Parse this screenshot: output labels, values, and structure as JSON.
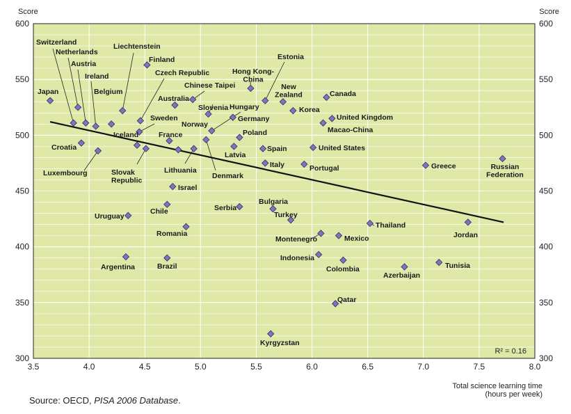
{
  "source": {
    "prefix": "Source: OECD, ",
    "italic": "PISA 2006 Database",
    "suffix": "."
  },
  "chart_data": {
    "type": "scatter",
    "ylabel_left": "Score",
    "ylabel_right": "Score",
    "xlabel_line1": "Total science learning time",
    "xlabel_line2": "(hours per week)",
    "xlim": [
      3.5,
      8.0
    ],
    "ylim": [
      300,
      600
    ],
    "xticks": [
      "3.5",
      "4.0",
      "4.5",
      "5.0",
      "5.5",
      "6.0",
      "6.5",
      "7.0",
      "7.5",
      "8.0"
    ],
    "yticks": [
      "300",
      "350",
      "400",
      "450",
      "500",
      "550",
      "600"
    ],
    "grid": true,
    "r2_label": "R² = 0.16",
    "trendline": {
      "x": [
        3.65,
        7.72
      ],
      "y": [
        512,
        422
      ]
    },
    "points": [
      {
        "name": "Japan",
        "x": 3.65,
        "y": 531
      },
      {
        "name": "Switzerland",
        "x": 3.86,
        "y": 511
      },
      {
        "name": "Netherlands",
        "x": 3.9,
        "y": 525
      },
      {
        "name": "Austria",
        "x": 3.97,
        "y": 511
      },
      {
        "name": "Ireland",
        "x": 4.06,
        "y": 508
      },
      {
        "name": "Croatia",
        "x": 3.93,
        "y": 493
      },
      {
        "name": "Luxembourg",
        "x": 4.08,
        "y": 486
      },
      {
        "name": "Belgium",
        "x": 4.2,
        "y": 510
      },
      {
        "name": "Liechtenstein",
        "x": 4.3,
        "y": 522
      },
      {
        "name": "Finland",
        "x": 4.52,
        "y": 563
      },
      {
        "name": "Czech Republic",
        "x": 4.46,
        "y": 513
      },
      {
        "name": "Sweden",
        "x": 4.45,
        "y": 503
      },
      {
        "name": "Iceland",
        "x": 4.43,
        "y": 491
      },
      {
        "name": "Slovak Republic",
        "x": 4.51,
        "y": 488
      },
      {
        "name": "Australia",
        "x": 4.77,
        "y": 527
      },
      {
        "name": "France",
        "x": 4.72,
        "y": 495
      },
      {
        "name": "Norway",
        "x": 4.8,
        "y": 487
      },
      {
        "name": "Lithuania",
        "x": 4.94,
        "y": 488
      },
      {
        "name": "Israel",
        "x": 4.75,
        "y": 454
      },
      {
        "name": "Chile",
        "x": 4.7,
        "y": 438
      },
      {
        "name": "Romania",
        "x": 4.87,
        "y": 418
      },
      {
        "name": "Uruguay",
        "x": 4.35,
        "y": 428
      },
      {
        "name": "Argentina",
        "x": 4.33,
        "y": 391
      },
      {
        "name": "Brazil",
        "x": 4.7,
        "y": 390
      },
      {
        "name": "Chinese Taipei",
        "x": 4.93,
        "y": 532
      },
      {
        "name": "Slovenia",
        "x": 5.07,
        "y": 519
      },
      {
        "name": "Hungary",
        "x": 5.1,
        "y": 504
      },
      {
        "name": "Denmark",
        "x": 5.05,
        "y": 496
      },
      {
        "name": "Germany",
        "x": 5.29,
        "y": 516
      },
      {
        "name": "Poland",
        "x": 5.35,
        "y": 498
      },
      {
        "name": "Latvia",
        "x": 5.3,
        "y": 490
      },
      {
        "name": "Serbia",
        "x": 5.35,
        "y": 436
      },
      {
        "name": "Hong Kong-China",
        "x": 5.45,
        "y": 542
      },
      {
        "name": "Estonia",
        "x": 5.58,
        "y": 531
      },
      {
        "name": "New Zealand",
        "x": 5.74,
        "y": 530
      },
      {
        "name": "Korea",
        "x": 5.83,
        "y": 522
      },
      {
        "name": "Spain",
        "x": 5.56,
        "y": 488
      },
      {
        "name": "Italy",
        "x": 5.58,
        "y": 475
      },
      {
        "name": "Portugal",
        "x": 5.93,
        "y": 474
      },
      {
        "name": "United States",
        "x": 6.01,
        "y": 489
      },
      {
        "name": "Canada",
        "x": 6.13,
        "y": 534
      },
      {
        "name": "United Kingdom",
        "x": 6.18,
        "y": 515
      },
      {
        "name": "Macao-China",
        "x": 6.1,
        "y": 511
      },
      {
        "name": "Bulgaria",
        "x": 5.65,
        "y": 434
      },
      {
        "name": "Turkey",
        "x": 5.81,
        "y": 424
      },
      {
        "name": "Montenegro",
        "x": 6.08,
        "y": 412
      },
      {
        "name": "Mexico",
        "x": 6.24,
        "y": 410
      },
      {
        "name": "Indonesia",
        "x": 6.06,
        "y": 393
      },
      {
        "name": "Colombia",
        "x": 6.28,
        "y": 388
      },
      {
        "name": "Thailand",
        "x": 6.52,
        "y": 421
      },
      {
        "name": "Qatar",
        "x": 6.21,
        "y": 349
      },
      {
        "name": "Kyrgyzstan",
        "x": 5.63,
        "y": 322
      },
      {
        "name": "Azerbaijan",
        "x": 6.83,
        "y": 382
      },
      {
        "name": "Greece",
        "x": 7.02,
        "y": 473
      },
      {
        "name": "Tunisia",
        "x": 7.14,
        "y": 386
      },
      {
        "name": "Jordan",
        "x": 7.4,
        "y": 422
      },
      {
        "name": "Russian Federation",
        "x": 7.71,
        "y": 479
      }
    ]
  }
}
